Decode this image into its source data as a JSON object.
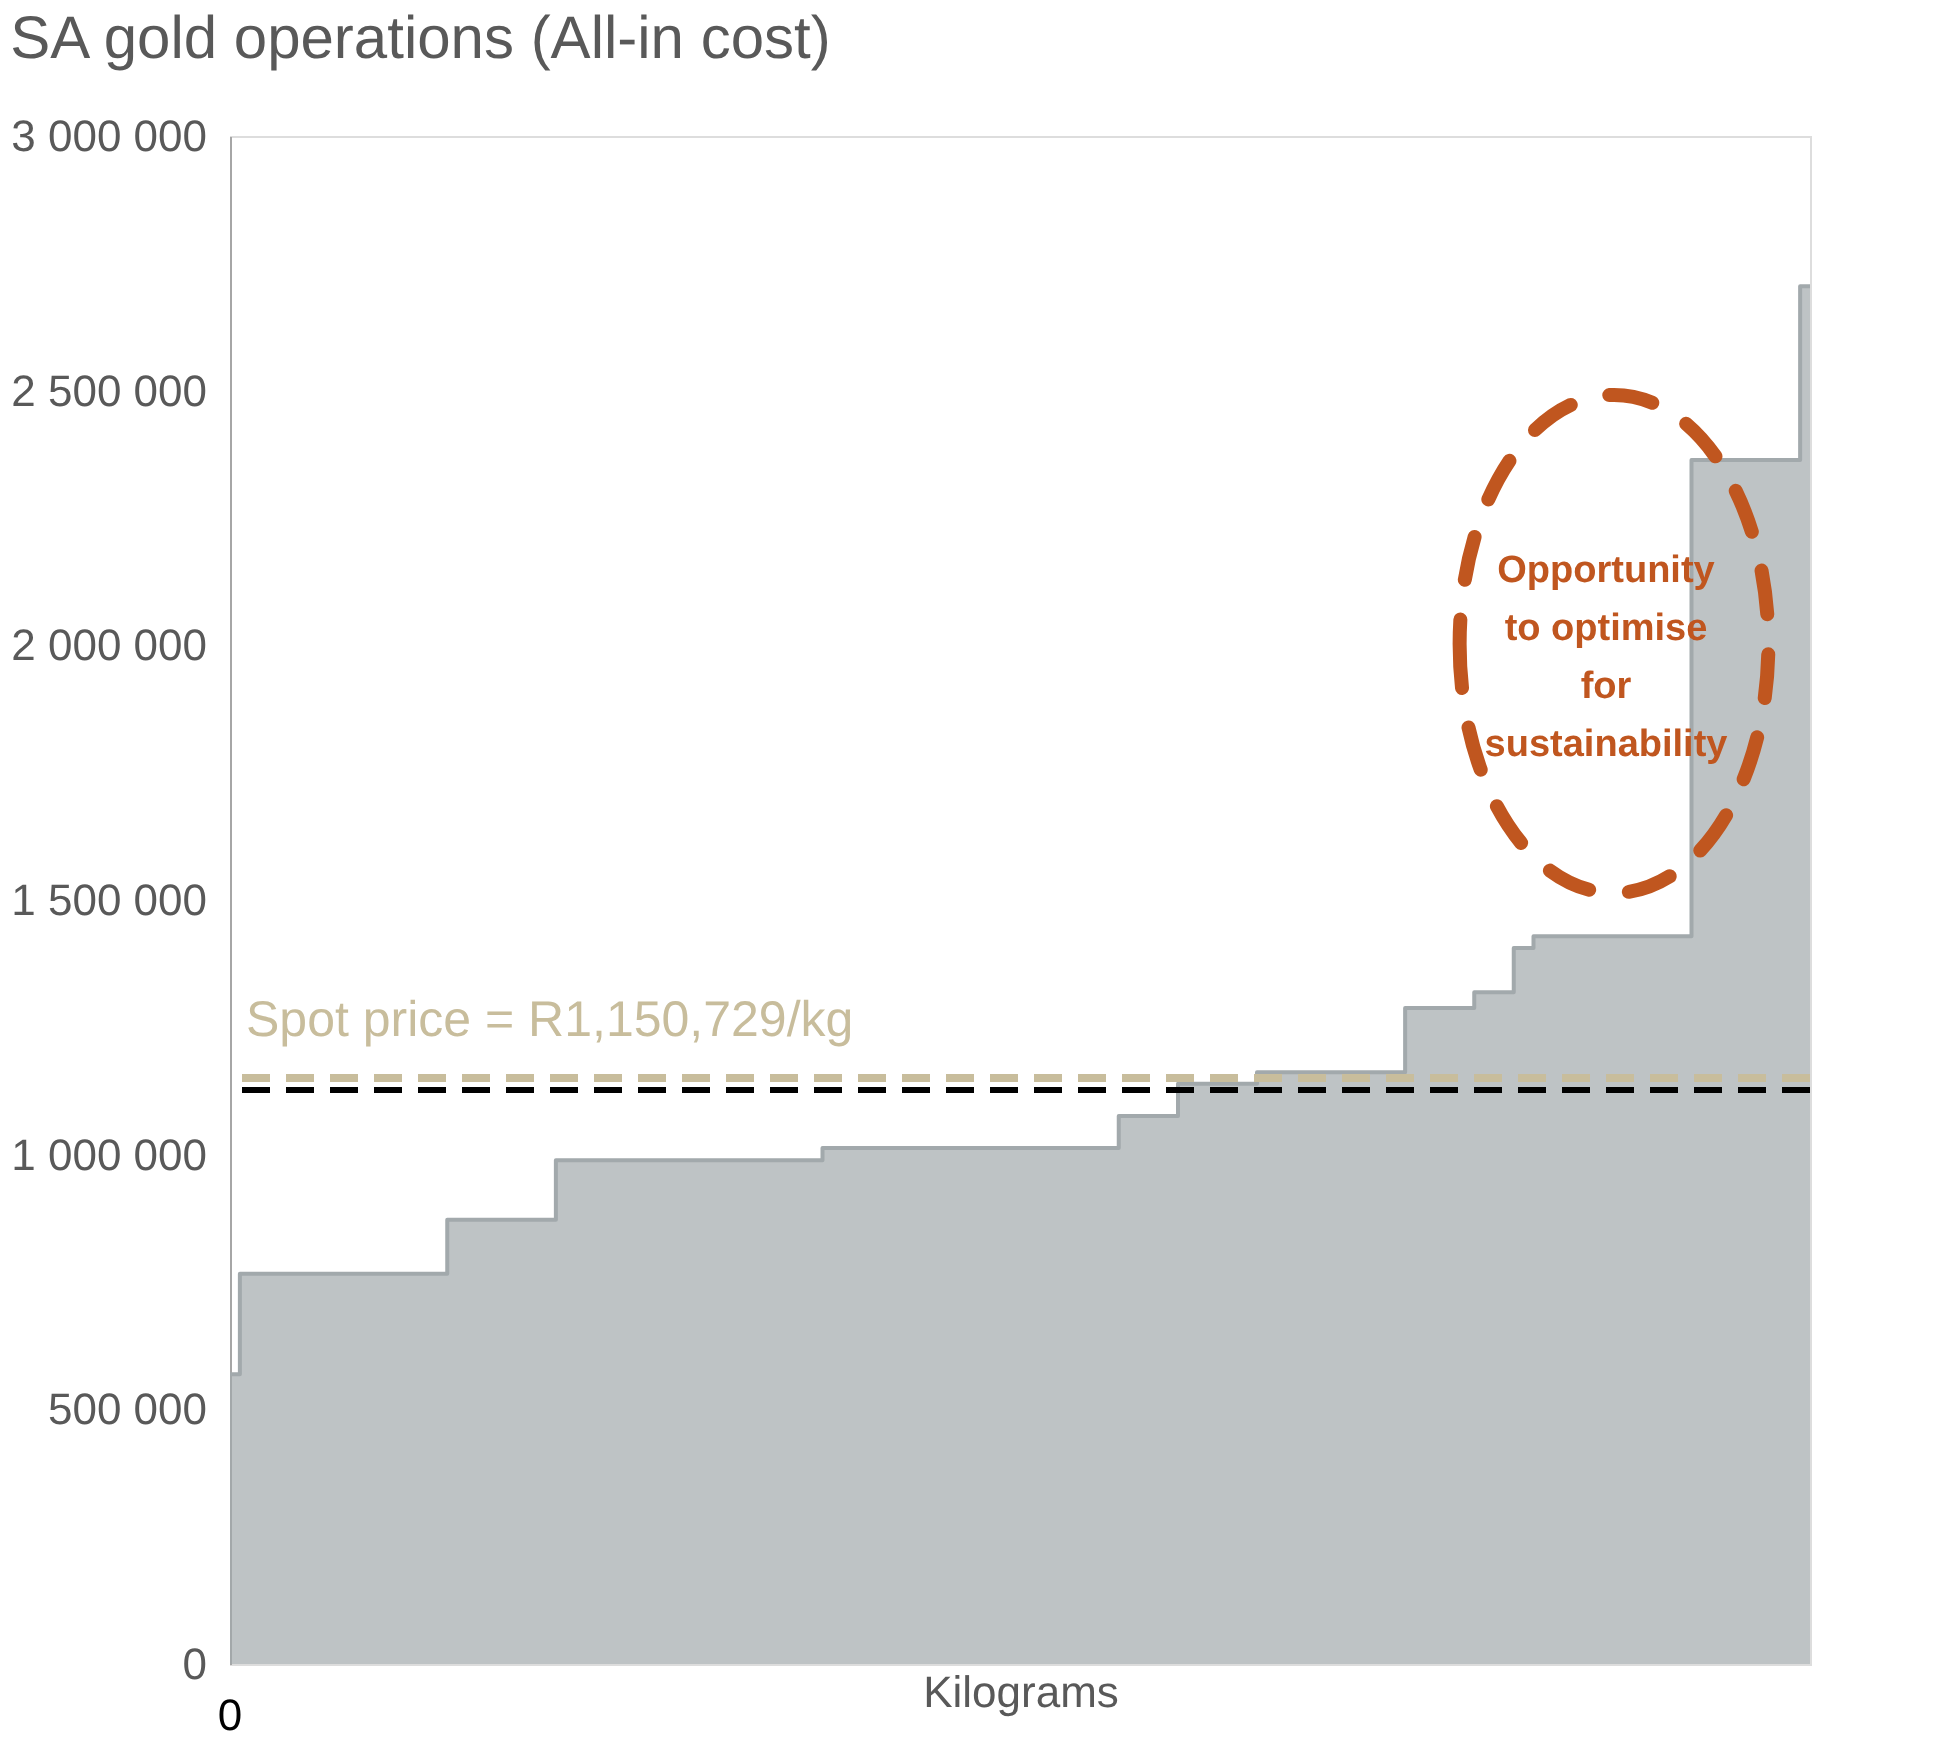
{
  "chart_data": {
    "type": "area",
    "title": "SA gold operations (All-in cost)",
    "xlabel": "Kilograms",
    "categories": [
      null,
      null,
      null,
      null,
      null,
      null,
      null,
      null,
      null,
      null,
      null,
      null,
      null,
      null,
      null,
      null,
      null,
      null,
      null,
      null,
      null,
      null,
      null,
      null,
      null,
      null,
      null,
      null,
      null,
      null,
      null,
      null,
      null,
      null,
      null,
      null,
      null,
      null,
      null,
      null,
      null,
      null,
      null,
      null,
      null,
      null,
      null,
      null,
      null,
      null,
      null,
      null,
      null,
      null,
      null,
      null,
      null,
      null,
      null,
      null,
      null,
      null,
      null,
      null,
      null,
      null,
      null,
      null,
      null,
      null,
      null,
      null,
      null,
      null,
      null,
      null,
      null,
      null,
      null,
      null,
      null,
      null,
      null,
      null,
      null,
      null,
      null,
      null,
      null,
      null,
      null,
      null,
      null,
      null,
      null,
      null,
      null,
      null,
      null,
      null,
      null,
      null,
      null,
      null,
      null,
      null,
      null,
      null,
      null,
      null,
      null,
      null,
      null,
      null,
      null,
      null,
      null,
      null,
      null,
      null,
      null,
      null,
      null,
      null,
      null,
      null,
      null,
      null,
      null,
      null,
      null,
      null,
      null,
      null,
      null,
      null,
      null,
      null,
      null,
      null,
      null,
      null,
      null,
      null,
      null,
      null,
      null,
      null,
      null,
      null,
      null,
      null,
      null,
      null,
      null,
      null,
      null,
      null,
      null,
      null,
      null
    ],
    "series": [
      {
        "color": "#a2a9ac",
        "values": [
          569000,
          766000,
          766000,
          766000,
          766000,
          766000,
          766000,
          766000,
          766000,
          766000,
          766000,
          766000,
          766000,
          766000,
          766000,
          766000,
          766000,
          766000,
          766000,
          766000,
          766000,
          766000,
          872000,
          872000,
          872000,
          872000,
          872000,
          872000,
          872000,
          872000,
          872000,
          872000,
          872000,
          989000,
          989000,
          989000,
          989000,
          989000,
          989000,
          989000,
          989000,
          989000,
          989000,
          989000,
          989000,
          989000,
          989000,
          989000,
          989000,
          989000,
          989000,
          989000,
          989000,
          989000,
          989000,
          989000,
          989000,
          989000,
          989000,
          989000,
          1013000,
          1013000,
          1013000,
          1013000,
          1013000,
          1013000,
          1013000,
          1013000,
          1013000,
          1013000,
          1013000,
          1013000,
          1013000,
          1013000,
          1013000,
          1013000,
          1013000,
          1013000,
          1013000,
          1013000,
          1013000,
          1013000,
          1013000,
          1013000,
          1013000,
          1013000,
          1013000,
          1013000,
          1013000,
          1013000,
          1076000,
          1076000,
          1076000,
          1076000,
          1076000,
          1076000,
          1139000,
          1139000,
          1139000,
          1139000,
          1139000,
          1139000,
          1139000,
          1139000,
          1162000,
          1162000,
          1162000,
          1162000,
          1162000,
          1162000,
          1162000,
          1162000,
          1162000,
          1162000,
          1162000,
          1162000,
          1162000,
          1162000,
          1162000,
          1288000,
          1288000,
          1288000,
          1288000,
          1288000,
          1288000,
          1288000,
          1319000,
          1319000,
          1319000,
          1319000,
          1406000,
          1406000,
          1429000,
          1429000,
          1429000,
          1429000,
          1429000,
          1429000,
          1429000,
          1429000,
          1429000,
          1429000,
          1429000,
          1429000,
          1429000,
          1429000,
          1429000,
          1429000,
          2364000,
          2364000,
          2364000,
          2364000,
          2364000,
          2364000,
          2364000,
          2364000,
          2364000,
          2364000,
          2364000,
          2705000,
          2705000
        ]
      }
    ],
    "ylim": [
      0,
      3000000
    ],
    "yticks": [
      {
        "value": 0,
        "label": "0"
      },
      {
        "value": 500000,
        "label": "500 000"
      },
      {
        "value": 1000000,
        "label": "1 000 000"
      },
      {
        "value": 1500000,
        "label": "1 500 000"
      },
      {
        "value": 2000000,
        "label": "2 000 000"
      },
      {
        "value": 2500000,
        "label": "2 500 000"
      },
      {
        "value": 3000000,
        "label": "3 000 000"
      }
    ],
    "tick_labels": "y",
    "ref_lines": [
      {
        "axis": "y",
        "value": 1150729,
        "label": "Spot price = R1,150,729/kg",
        "color": "#c8bd9c",
        "line_style": "dashed"
      },
      {
        "axis": "y",
        "value": 1127000,
        "color": "#000000",
        "line_style": "dashed"
      }
    ],
    "annotations": [
      "Opportunity\nto optimise\nfor\nsustainability",
      "0"
    ]
  }
}
